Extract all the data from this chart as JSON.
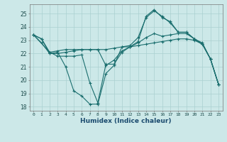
{
  "xlabel": "Humidex (Indice chaleur)",
  "background_color": "#cce8e8",
  "grid_color": "#aad0d0",
  "line_color": "#1a6e6e",
  "xlim": [
    -0.5,
    23.5
  ],
  "ylim": [
    17.7,
    25.7
  ],
  "xtick_labels": [
    "0",
    "1",
    "2",
    "3",
    "4",
    "5",
    "6",
    "7",
    "8",
    "9",
    "10",
    "11",
    "12",
    "13",
    "14",
    "15",
    "16",
    "17",
    "18",
    "19",
    "20",
    "21",
    "22",
    "23"
  ],
  "ytick_labels": [
    "18",
    "19",
    "20",
    "21",
    "22",
    "23",
    "24",
    "25"
  ],
  "ytick_vals": [
    18,
    19,
    20,
    21,
    22,
    23,
    24,
    25
  ],
  "series": [
    {
      "x": [
        0,
        1,
        2,
        3,
        4,
        5,
        6,
        7,
        8,
        9,
        10,
        11,
        12,
        13,
        14,
        15,
        16,
        17,
        18,
        19,
        20,
        21,
        22,
        23
      ],
      "y": [
        23.4,
        23.1,
        22.0,
        22.1,
        21.0,
        19.2,
        18.8,
        18.2,
        18.2,
        20.5,
        21.1,
        22.5,
        22.6,
        23.2,
        24.7,
        25.2,
        24.8,
        24.3,
        23.6,
        23.6,
        23.1,
        22.8,
        21.6,
        19.7
      ]
    },
    {
      "x": [
        0,
        1,
        2,
        3,
        4,
        5,
        6,
        7,
        8,
        9,
        10,
        11,
        12,
        13,
        14,
        15,
        16,
        17,
        18,
        19,
        20,
        21,
        22,
        23
      ],
      "y": [
        23.4,
        23.1,
        22.1,
        22.2,
        22.3,
        22.3,
        22.3,
        22.3,
        22.3,
        22.3,
        22.4,
        22.5,
        22.5,
        22.6,
        22.7,
        22.8,
        22.9,
        23.0,
        23.1,
        23.1,
        23.0,
        22.7,
        21.6,
        19.7
      ]
    },
    {
      "x": [
        0,
        1,
        2,
        3,
        4,
        5,
        6,
        7,
        8,
        9,
        10,
        11,
        12,
        13,
        14,
        15,
        16,
        17,
        18,
        19,
        20,
        21,
        22,
        23
      ],
      "y": [
        23.4,
        22.8,
        22.0,
        22.0,
        22.1,
        22.2,
        22.3,
        22.3,
        22.3,
        21.1,
        21.5,
        22.2,
        22.5,
        22.8,
        23.2,
        23.5,
        23.3,
        23.4,
        23.5,
        23.5,
        23.1,
        22.7,
        21.6,
        19.7
      ]
    },
    {
      "x": [
        0,
        2,
        3,
        4,
        5,
        6,
        7,
        8,
        9,
        10,
        11,
        12,
        13,
        14,
        15,
        16,
        17,
        18,
        19,
        20,
        21,
        22,
        23
      ],
      "y": [
        23.4,
        22.1,
        21.8,
        21.8,
        21.8,
        21.9,
        19.8,
        18.3,
        21.2,
        21.2,
        22.1,
        22.5,
        22.9,
        24.8,
        25.3,
        24.7,
        24.4,
        23.6,
        23.6,
        23.1,
        22.7,
        21.6,
        19.7
      ]
    }
  ]
}
